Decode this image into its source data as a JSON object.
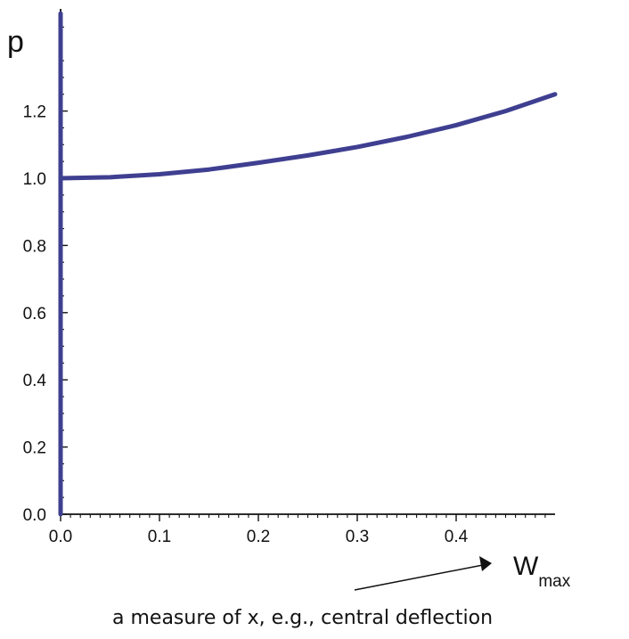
{
  "chart_data": {
    "type": "line",
    "ylabel": "p",
    "xlabel": {
      "main": "W",
      "subscript": "max"
    },
    "annotation": "a measure of x, e.g., central deflection",
    "xlim": [
      0,
      0.5
    ],
    "ylim": [
      0,
      1.3
    ],
    "x_major_ticks": [
      0.0,
      0.1,
      0.2,
      0.3,
      0.4
    ],
    "x_tick_labels": [
      "0.0",
      "0.1",
      "0.2",
      "0.3",
      "0.4"
    ],
    "y_major_ticks": [
      0.0,
      0.2,
      0.4,
      0.6,
      0.8,
      1.0,
      1.2
    ],
    "y_tick_labels": [
      "0.0",
      "0.2",
      "0.4",
      "0.6",
      "0.8",
      "1.0",
      "1.2"
    ],
    "grid": false,
    "series": [
      {
        "x": [
          0.0,
          0.05,
          0.1,
          0.15,
          0.2,
          0.25,
          0.3,
          0.35,
          0.4,
          0.45,
          0.5
        ],
        "y": [
          1.0,
          1.003,
          1.012,
          1.026,
          1.046,
          1.068,
          1.093,
          1.123,
          1.158,
          1.2,
          1.25
        ]
      },
      {
        "x": [
          0.0,
          0.0
        ],
        "y": [
          0.0,
          1.49
        ]
      }
    ],
    "colors": {
      "curve": "#3f3f91",
      "axis": "#111111",
      "arrow": "#111111"
    }
  }
}
